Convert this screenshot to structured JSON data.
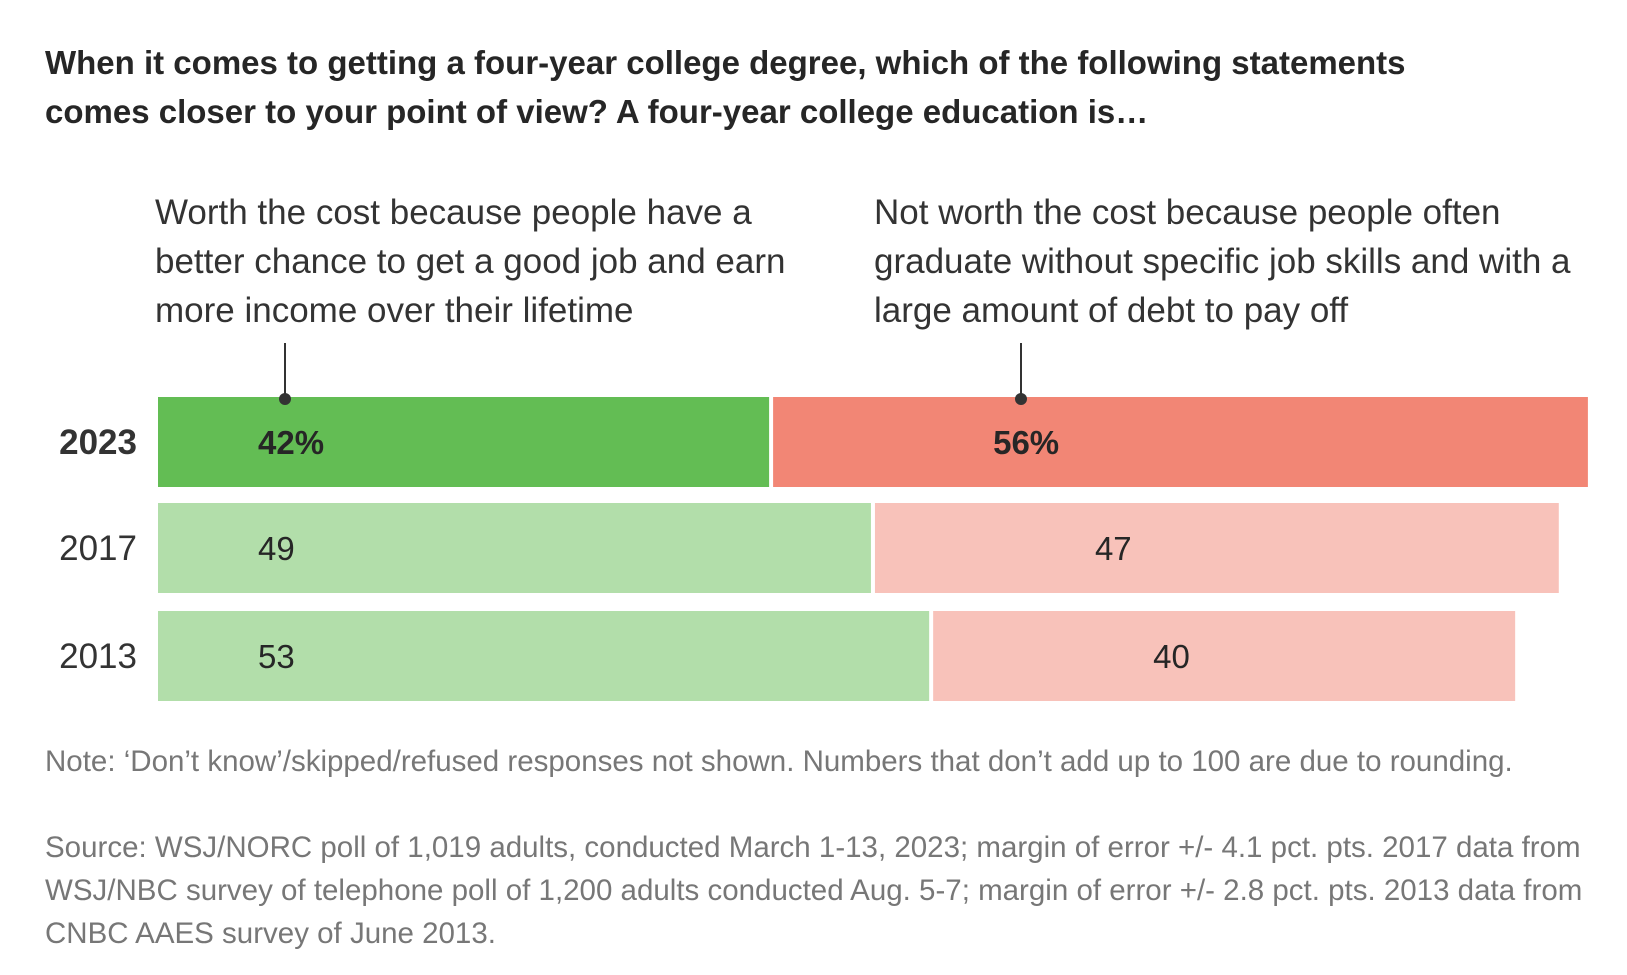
{
  "title": "When it comes to getting a four-year college degree, which of the following statements comes closer to your point of view? A four-year college education is…",
  "legend": {
    "worth": "Worth the cost because people have a better chance to get a good job and earn more income over their lifetime",
    "not_worth": "Not worth the cost because people often graduate without specific job skills and with a large amount of debt to pay off"
  },
  "chart_data": {
    "type": "bar",
    "orientation": "horizontal-stacked",
    "categories": [
      "2023",
      "2017",
      "2013"
    ],
    "series": [
      {
        "name": "Worth the cost because people have a better chance to get a good job and earn more income over their lifetime",
        "values": [
          42,
          49,
          53
        ],
        "labels": [
          "42%",
          "49",
          "53"
        ],
        "color": "#63bd54",
        "color_light": "#b2deaa"
      },
      {
        "name": "Not worth the cost because people often graduate without specific job skills and with a large amount of debt to pay off",
        "values": [
          56,
          47,
          40
        ],
        "labels": [
          "56%",
          "47",
          "40"
        ],
        "color": "#f28675",
        "color_light": "#f8c2ba"
      }
    ],
    "highlight_category": "2023",
    "xlim": [
      0,
      100
    ],
    "grid": false,
    "legend_placement": "top"
  },
  "footnote": {
    "note": "Note: ‘Don’t know’/skipped/refused responses not shown. Numbers that don’t add up to 100 are due to rounding.",
    "source": "Source: WSJ/NORC poll of 1,019 adults, conducted March 1-13, 2023; margin of error +/- 4.1 pct. pts. 2017 data from WSJ/NBC survey of telephone poll of 1,200 adults conducted Aug. 5-7; margin of error +/- 2.8 pct. pts. 2013 data from CNBC AAES survey of June 2013."
  }
}
